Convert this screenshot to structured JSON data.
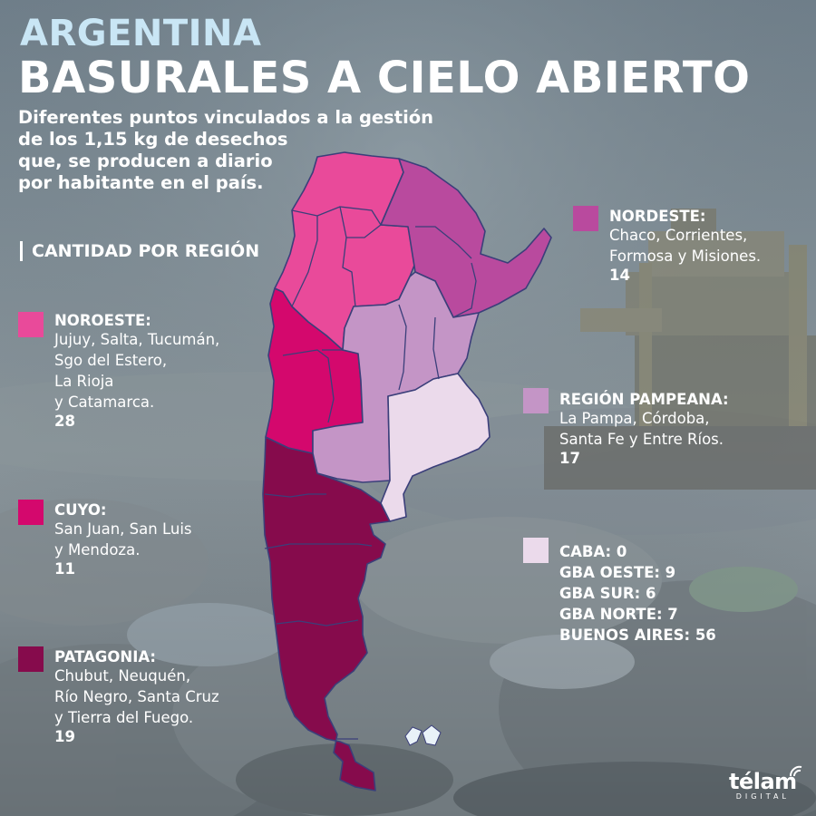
{
  "colors": {
    "noroeste": "#e94a9a",
    "nordeste": "#b94a9e",
    "cuyo": "#d4086d",
    "pampeana": "#c495c6",
    "buenos_aires": "#ebdaeb",
    "patagonia": "#860b4c"
  },
  "header": {
    "kicker": "ARGENTINA",
    "title": "BASURALES A CIELO ABIERTO",
    "subtitle_lines": [
      "Diferentes puntos vinculados a la gestión",
      "de los 1,15 kg de desechos",
      "que, se producen a diario",
      "por habitante en el país."
    ]
  },
  "section_title": "CANTIDAD POR REGIÓN",
  "regions": {
    "noroeste": {
      "name": "NOROESTE:",
      "lines": [
        "Jujuy, Salta, Tucumán,",
        "Sgo del Estero,",
        "La Rioja",
        "y Catamarca."
      ],
      "count": "28"
    },
    "cuyo": {
      "name": "CUYO:",
      "lines": [
        "San Juan, San Luis",
        "y Mendoza."
      ],
      "count": "11"
    },
    "patagonia": {
      "name": "PATAGONIA:",
      "lines": [
        "Chubut, Neuquén,",
        "Río Negro, Santa Cruz",
        "y Tierra del Fuego."
      ],
      "count": "19"
    },
    "nordeste": {
      "name": "NORDESTE:",
      "lines": [
        "Chaco, Corrientes,",
        "Formosa y Misiones."
      ],
      "count": "14"
    },
    "pampeana": {
      "name": "REGIÓN PAMPEANA:",
      "lines": [
        "La Pampa, Córdoba,",
        "Santa Fe y Entre Ríos."
      ],
      "count": "17"
    }
  },
  "buenos_aires_block": {
    "lines": [
      "CABA: 0",
      "GBA OESTE: 9",
      "GBA SUR: 6",
      "GBA NORTE: 7",
      "BUENOS AIRES: 56"
    ]
  },
  "logo": {
    "word": "télam",
    "sub": "DIGITAL",
    "icon": "signal-arcs-icon"
  },
  "background": {
    "icon": "landfill-bulldozer-photo"
  }
}
